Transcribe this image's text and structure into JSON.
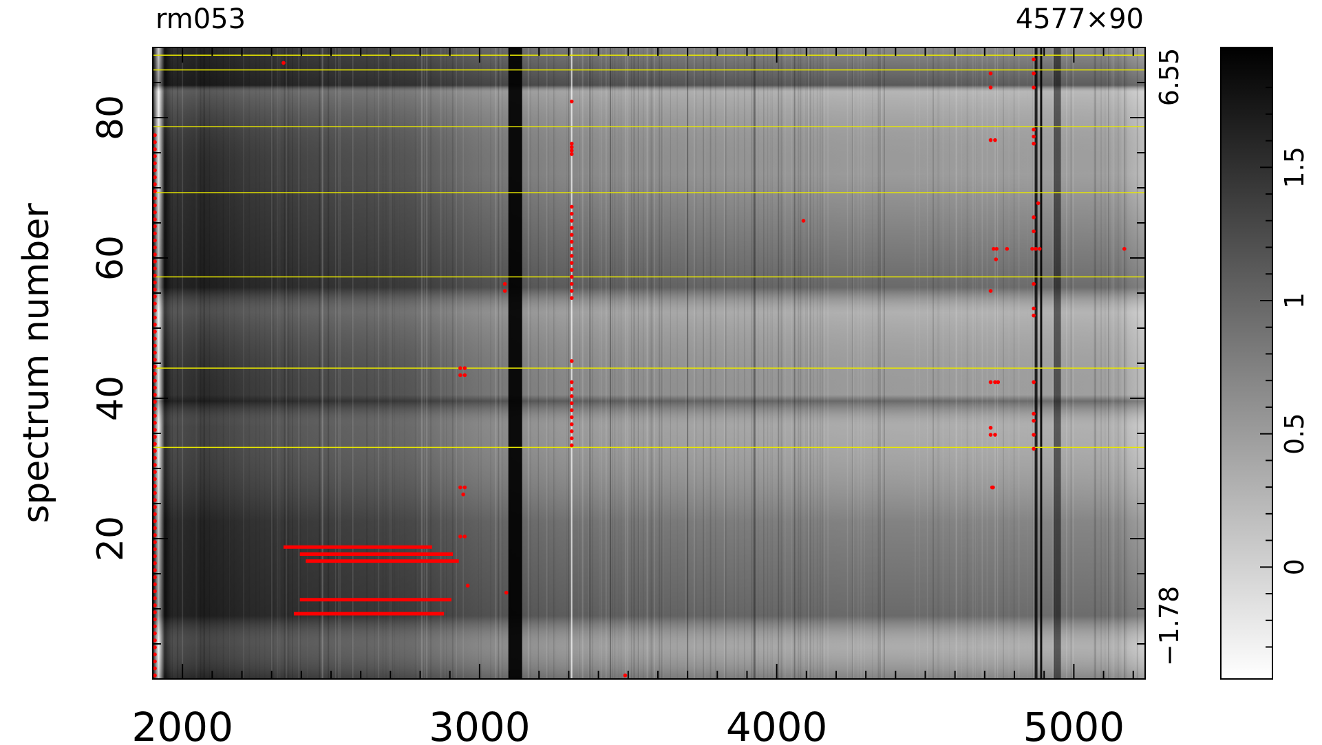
{
  "chart_data": {
    "type": "heatmap",
    "title_left": "rm053",
    "title_right": "4577×90",
    "ylabel": "spectrum number",
    "xlim": [
      1900,
      5240
    ],
    "ylim": [
      0,
      90
    ],
    "x_ticks": [
      2000,
      3000,
      4000,
      5000
    ],
    "x_tick_labels": [
      "2000",
      "3000",
      "4000",
      "5000"
    ],
    "y_ticks": [
      20,
      40,
      60,
      80
    ],
    "y_tick_labels": [
      "20",
      "40",
      "60",
      "80"
    ],
    "right_axis_labels": [
      "6.55",
      "−1.78"
    ],
    "colorbar": {
      "range": [
        -0.42,
        1.95
      ],
      "ticks": [
        0,
        0.5,
        1,
        1.5
      ],
      "tick_labels": [
        "0",
        "0.5",
        "1",
        "1.5"
      ],
      "colormap": "white-to-black"
    },
    "yellow_lines_y": [
      33,
      44.3,
      57.3,
      69.3,
      78.7,
      86.8,
      88.9
    ],
    "red_segments": [
      {
        "y": 18.8,
        "x0": 2340,
        "x1": 2840
      },
      {
        "y": 17.8,
        "x0": 2395,
        "x1": 2910
      },
      {
        "y": 16.8,
        "x0": 2415,
        "x1": 2930
      },
      {
        "y": 11.3,
        "x0": 2395,
        "x1": 2905
      },
      {
        "y": 9.3,
        "x0": 2375,
        "x1": 2880
      }
    ],
    "red_points": [
      [
        2340,
        87.8
      ],
      [
        3310,
        82.3
      ],
      [
        3310,
        76.3
      ],
      [
        3310,
        75.8
      ],
      [
        3310,
        75.3
      ],
      [
        3310,
        74.8
      ],
      [
        3310,
        67.3
      ],
      [
        3310,
        66.3
      ],
      [
        3310,
        65.3
      ],
      [
        3310,
        64.3
      ],
      [
        3310,
        63.3
      ],
      [
        3310,
        62.3
      ],
      [
        3310,
        61.3
      ],
      [
        3310,
        60.3
      ],
      [
        3310,
        59.3
      ],
      [
        3310,
        58.3
      ],
      [
        3310,
        57.3
      ],
      [
        3310,
        56.3
      ],
      [
        3310,
        55.3
      ],
      [
        3310,
        54.3
      ],
      [
        3310,
        45.3
      ],
      [
        3310,
        42.3
      ],
      [
        3310,
        41.3
      ],
      [
        3310,
        40.3
      ],
      [
        3310,
        39.3
      ],
      [
        3310,
        38.3
      ],
      [
        3310,
        37.3
      ],
      [
        3310,
        36.3
      ],
      [
        3310,
        35.3
      ],
      [
        3310,
        34.3
      ],
      [
        3310,
        33.3
      ],
      [
        2935,
        44.3
      ],
      [
        2950,
        44.3
      ],
      [
        2935,
        43.3
      ],
      [
        2950,
        43.3
      ],
      [
        2935,
        27.3
      ],
      [
        2950,
        27.3
      ],
      [
        2945,
        26.3
      ],
      [
        2935,
        20.3
      ],
      [
        2950,
        20.3
      ],
      [
        2960,
        13.3
      ],
      [
        3090,
        12.3
      ],
      [
        3085,
        56.3
      ],
      [
        3085,
        55.3
      ],
      [
        3490,
        0.5
      ],
      [
        4090,
        65.3
      ],
      [
        4720,
        86.3
      ],
      [
        4720,
        84.3
      ],
      [
        4720,
        76.8
      ],
      [
        4735,
        76.8
      ],
      [
        4730,
        61.3
      ],
      [
        4740,
        61.3
      ],
      [
        4775,
        61.3
      ],
      [
        4738,
        59.8
      ],
      [
        4720,
        55.3
      ],
      [
        4720,
        42.3
      ],
      [
        4735,
        42.3
      ],
      [
        4745,
        42.3
      ],
      [
        4720,
        35.8
      ],
      [
        4735,
        34.8
      ],
      [
        4720,
        34.8
      ],
      [
        4725,
        27.3
      ],
      [
        4728,
        27.3
      ],
      [
        4865,
        88.3
      ],
      [
        4865,
        86.3
      ],
      [
        4865,
        84.3
      ],
      [
        4865,
        78.3
      ],
      [
        4865,
        77.3
      ],
      [
        4865,
        76.3
      ],
      [
        4880,
        67.8
      ],
      [
        4865,
        65.8
      ],
      [
        4865,
        63.8
      ],
      [
        4860,
        61.3
      ],
      [
        4872,
        61.3
      ],
      [
        4885,
        61.3
      ],
      [
        4865,
        56.3
      ],
      [
        4865,
        52.8
      ],
      [
        4865,
        51.8
      ],
      [
        4865,
        42.3
      ],
      [
        4865,
        37.8
      ],
      [
        4865,
        36.8
      ],
      [
        4865,
        34.8
      ],
      [
        4865,
        32.8
      ],
      [
        5170,
        61.3
      ]
    ]
  }
}
